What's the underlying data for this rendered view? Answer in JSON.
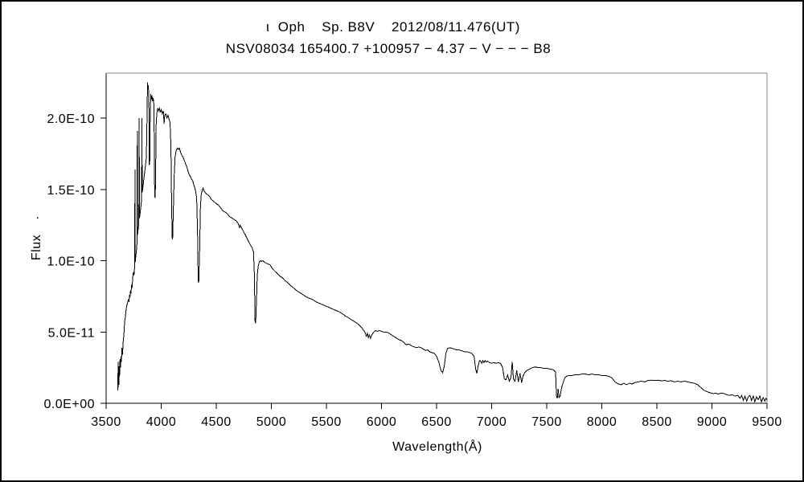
{
  "window": {
    "background": "#ffffff",
    "border_color": "#000000"
  },
  "chart_data": {
    "type": "line",
    "title": "ι  Oph    Sp. B8V    2012/08/11.476(UT)",
    "subtitle": "NSV08034 165400.7 +100957 − 4.37 − V − − − B8",
    "xlabel": "Wavelength(Å)",
    "ylabel": "Flux",
    "ylabel_dot": ".",
    "line_color": "#000000",
    "frame_front_color": "#000000",
    "frame_back_color": "#888888",
    "grid": false,
    "legend": "none",
    "xlim": [
      3500,
      9500
    ],
    "x_tick_values": [
      3500,
      4000,
      4500,
      5000,
      5500,
      6000,
      6500,
      7000,
      7500,
      8000,
      8500,
      9000,
      9500
    ],
    "x_tick_labels": [
      "3500",
      "4000",
      "4500",
      "5000",
      "5500",
      "6000",
      "6500",
      "7000",
      "7500",
      "8000",
      "8500",
      "9000",
      "9500"
    ],
    "y_tick_values_1e11": [
      0,
      5,
      10,
      15,
      20
    ],
    "y_tick_labels": [
      "0.0E+00",
      "5.0E-11",
      "1.0E-10",
      "1.5E-10",
      "2.0E-10"
    ],
    "ylim_1e11": [
      0,
      23.2
    ],
    "flux_unit_scale": "1e-11",
    "points": [
      [
        3607,
        0.9
      ],
      [
        3608,
        2.9
      ],
      [
        3610,
        1.1
      ],
      [
        3612,
        2.4
      ],
      [
        3615,
        1.3
      ],
      [
        3618,
        2.6
      ],
      [
        3622,
        1.9
      ],
      [
        3626,
        3.1
      ],
      [
        3630,
        2.5
      ],
      [
        3634,
        3.3
      ],
      [
        3639,
        2.9
      ],
      [
        3644,
        3.9
      ],
      [
        3649,
        3.4
      ],
      [
        3655,
        4.3
      ],
      [
        3661,
        4.8
      ],
      [
        3668,
        5.7
      ],
      [
        3675,
        6.1
      ],
      [
        3682,
        6.6
      ],
      [
        3689,
        6.9
      ],
      [
        3696,
        7.1
      ],
      [
        3703,
        7.3
      ],
      [
        3708,
        7.1
      ],
      [
        3712,
        7.6
      ],
      [
        3716,
        7.4
      ],
      [
        3721,
        7.9
      ],
      [
        3726,
        7.7
      ],
      [
        3731,
        8.3
      ],
      [
        3736,
        8.1
      ],
      [
        3742,
        8.9
      ],
      [
        3748,
        9.2
      ],
      [
        3753,
        9.0
      ],
      [
        3759,
        9.6
      ],
      [
        3762,
        16.4
      ],
      [
        3764,
        9.9
      ],
      [
        3769,
        10.3
      ],
      [
        3774,
        10.6
      ],
      [
        3778,
        10.9
      ],
      [
        3781,
        11.5
      ],
      [
        3783,
        19.1
      ],
      [
        3785,
        11.8
      ],
      [
        3790,
        12.1
      ],
      [
        3794,
        12.4
      ],
      [
        3797,
        12.8
      ],
      [
        3800,
        20.0
      ],
      [
        3803,
        13.0
      ],
      [
        3808,
        13.3
      ],
      [
        3813,
        13.6
      ],
      [
        3818,
        14.0
      ],
      [
        3822,
        14.3
      ],
      [
        3825,
        20.0
      ],
      [
        3828,
        14.8
      ],
      [
        3833,
        15.1
      ],
      [
        3838,
        15.4
      ],
      [
        3843,
        15.8
      ],
      [
        3848,
        16.1
      ],
      [
        3853,
        16.4
      ],
      [
        3858,
        16.7
      ],
      [
        3863,
        17.0
      ],
      [
        3868,
        18.3
      ],
      [
        3872,
        20.5
      ],
      [
        3876,
        22.5
      ],
      [
        3880,
        22.0
      ],
      [
        3884,
        22.3
      ],
      [
        3888,
        21.2
      ],
      [
        3892,
        16.7
      ],
      [
        3896,
        17.0
      ],
      [
        3900,
        20.0
      ],
      [
        3905,
        21.7
      ],
      [
        3910,
        21.3
      ],
      [
        3916,
        21.6
      ],
      [
        3922,
        21.2
      ],
      [
        3928,
        21.4
      ],
      [
        3934,
        20.9
      ],
      [
        3940,
        15.0
      ],
      [
        3944,
        14.4
      ],
      [
        3948,
        15.2
      ],
      [
        3954,
        19.5
      ],
      [
        3960,
        20.3
      ],
      [
        3968,
        20.7
      ],
      [
        3976,
        20.5
      ],
      [
        3984,
        20.7
      ],
      [
        3992,
        20.4
      ],
      [
        4000,
        20.6
      ],
      [
        4010,
        20.3
      ],
      [
        4020,
        20.5
      ],
      [
        4026,
        19.6
      ],
      [
        4032,
        20.2
      ],
      [
        4042,
        20.3
      ],
      [
        4052,
        20.0
      ],
      [
        4062,
        20.2
      ],
      [
        4072,
        19.9
      ],
      [
        4080,
        19.7
      ],
      [
        4088,
        18.0
      ],
      [
        4094,
        14.0
      ],
      [
        4100,
        11.6
      ],
      [
        4104,
        11.5
      ],
      [
        4110,
        13.5
      ],
      [
        4118,
        16.0
      ],
      [
        4126,
        17.3
      ],
      [
        4136,
        17.7
      ],
      [
        4146,
        17.9
      ],
      [
        4156,
        17.8
      ],
      [
        4166,
        17.9
      ],
      [
        4176,
        17.6
      ],
      [
        4186,
        17.4
      ],
      [
        4196,
        17.3
      ],
      [
        4206,
        17.1
      ],
      [
        4216,
        16.9
      ],
      [
        4226,
        16.7
      ],
      [
        4236,
        16.5
      ],
      [
        4246,
        16.2
      ],
      [
        4256,
        16.0
      ],
      [
        4266,
        15.9
      ],
      [
        4276,
        15.7
      ],
      [
        4286,
        15.6
      ],
      [
        4296,
        15.3
      ],
      [
        4306,
        15.1
      ],
      [
        4314,
        14.8
      ],
      [
        4322,
        14.4
      ],
      [
        4330,
        12.0
      ],
      [
        4336,
        8.6
      ],
      [
        4341,
        8.45
      ],
      [
        4348,
        10.5
      ],
      [
        4356,
        13.8
      ],
      [
        4364,
        14.7
      ],
      [
        4372,
        14.9
      ],
      [
        4380,
        15.1
      ],
      [
        4388,
        14.9
      ],
      [
        4398,
        14.8
      ],
      [
        4410,
        14.7
      ],
      [
        4425,
        14.6
      ],
      [
        4440,
        14.5
      ],
      [
        4455,
        14.3
      ],
      [
        4470,
        14.2
      ],
      [
        4485,
        14.1
      ],
      [
        4500,
        14.0
      ],
      [
        4520,
        13.9
      ],
      [
        4540,
        13.7
      ],
      [
        4560,
        13.5
      ],
      [
        4580,
        13.4
      ],
      [
        4600,
        13.3
      ],
      [
        4620,
        13.1
      ],
      [
        4640,
        13.0
      ],
      [
        4660,
        12.9
      ],
      [
        4680,
        12.8
      ],
      [
        4700,
        12.6
      ],
      [
        4710,
        12.3
      ],
      [
        4716,
        12.5
      ],
      [
        4730,
        12.3
      ],
      [
        4750,
        12.0
      ],
      [
        4770,
        11.7
      ],
      [
        4790,
        11.4
      ],
      [
        4810,
        11.1
      ],
      [
        4826,
        10.9
      ],
      [
        4838,
        10.6
      ],
      [
        4846,
        9.0
      ],
      [
        4852,
        5.8
      ],
      [
        4858,
        5.6
      ],
      [
        4864,
        7.0
      ],
      [
        4872,
        9.0
      ],
      [
        4880,
        9.6
      ],
      [
        4890,
        9.9
      ],
      [
        4900,
        10.0
      ],
      [
        4912,
        9.95
      ],
      [
        4924,
        10.0
      ],
      [
        4936,
        9.9
      ],
      [
        4948,
        9.85
      ],
      [
        4960,
        9.8
      ],
      [
        4975,
        9.75
      ],
      [
        4990,
        9.7
      ],
      [
        5005,
        9.5
      ],
      [
        5020,
        9.35
      ],
      [
        5040,
        9.2
      ],
      [
        5060,
        9.05
      ],
      [
        5080,
        8.9
      ],
      [
        5100,
        8.8
      ],
      [
        5125,
        8.6
      ],
      [
        5150,
        8.45
      ],
      [
        5175,
        8.25
      ],
      [
        5200,
        8.1
      ],
      [
        5230,
        7.9
      ],
      [
        5260,
        7.75
      ],
      [
        5290,
        7.6
      ],
      [
        5320,
        7.45
      ],
      [
        5350,
        7.35
      ],
      [
        5380,
        7.25
      ],
      [
        5410,
        7.1
      ],
      [
        5440,
        7.0
      ],
      [
        5470,
        6.9
      ],
      [
        5500,
        6.8
      ],
      [
        5530,
        6.7
      ],
      [
        5560,
        6.6
      ],
      [
        5590,
        6.5
      ],
      [
        5620,
        6.4
      ],
      [
        5650,
        6.25
      ],
      [
        5675,
        6.1
      ],
      [
        5700,
        6.0
      ],
      [
        5730,
        5.85
      ],
      [
        5760,
        5.7
      ],
      [
        5790,
        5.55
      ],
      [
        5820,
        5.3
      ],
      [
        5850,
        5.0
      ],
      [
        5862,
        4.7
      ],
      [
        5872,
        4.9
      ],
      [
        5880,
        4.6
      ],
      [
        5890,
        4.8
      ],
      [
        5900,
        4.55
      ],
      [
        5912,
        4.8
      ],
      [
        5930,
        5.0
      ],
      [
        5945,
        5.1
      ],
      [
        5960,
        5.05
      ],
      [
        5980,
        5.1
      ],
      [
        6000,
        5.05
      ],
      [
        6020,
        5.0
      ],
      [
        6040,
        5.0
      ],
      [
        6060,
        4.95
      ],
      [
        6080,
        4.85
      ],
      [
        6100,
        4.75
      ],
      [
        6120,
        4.65
      ],
      [
        6140,
        4.55
      ],
      [
        6160,
        4.45
      ],
      [
        6180,
        4.4
      ],
      [
        6200,
        4.3
      ],
      [
        6225,
        4.1
      ],
      [
        6240,
        4.15
      ],
      [
        6260,
        4.1
      ],
      [
        6280,
        4.0
      ],
      [
        6300,
        3.95
      ],
      [
        6320,
        3.9
      ],
      [
        6340,
        3.95
      ],
      [
        6360,
        3.9
      ],
      [
        6380,
        3.8
      ],
      [
        6400,
        3.7
      ],
      [
        6420,
        3.75
      ],
      [
        6440,
        3.6
      ],
      [
        6460,
        3.55
      ],
      [
        6480,
        3.5
      ],
      [
        6500,
        3.3
      ],
      [
        6520,
        2.9
      ],
      [
        6540,
        2.3
      ],
      [
        6555,
        2.15
      ],
      [
        6570,
        2.6
      ],
      [
        6585,
        3.5
      ],
      [
        6600,
        3.85
      ],
      [
        6620,
        3.9
      ],
      [
        6640,
        3.85
      ],
      [
        6660,
        3.8
      ],
      [
        6680,
        3.75
      ],
      [
        6700,
        3.75
      ],
      [
        6720,
        3.7
      ],
      [
        6740,
        3.65
      ],
      [
        6760,
        3.6
      ],
      [
        6780,
        3.6
      ],
      [
        6800,
        3.55
      ],
      [
        6820,
        3.5
      ],
      [
        6840,
        3.3
      ],
      [
        6855,
        2.4
      ],
      [
        6866,
        2.1
      ],
      [
        6877,
        2.6
      ],
      [
        6890,
        3.0
      ],
      [
        6900,
        2.95
      ],
      [
        6910,
        2.8
      ],
      [
        6920,
        3.0
      ],
      [
        6930,
        2.85
      ],
      [
        6940,
        3.0
      ],
      [
        6950,
        2.9
      ],
      [
        6965,
        2.95
      ],
      [
        6980,
        2.85
      ],
      [
        7000,
        2.8
      ],
      [
        7020,
        2.85
      ],
      [
        7040,
        2.8
      ],
      [
        7060,
        2.85
      ],
      [
        7080,
        2.8
      ],
      [
        7100,
        2.5
      ],
      [
        7115,
        1.7
      ],
      [
        7130,
        1.65
      ],
      [
        7145,
        2.0
      ],
      [
        7160,
        1.55
      ],
      [
        7175,
        1.8
      ],
      [
        7187,
        2.9
      ],
      [
        7198,
        1.7
      ],
      [
        7212,
        1.55
      ],
      [
        7228,
        2.3
      ],
      [
        7242,
        1.5
      ],
      [
        7258,
        2.1
      ],
      [
        7272,
        1.45
      ],
      [
        7285,
        1.9
      ],
      [
        7300,
        2.15
      ],
      [
        7320,
        2.3
      ],
      [
        7345,
        2.4
      ],
      [
        7370,
        2.5
      ],
      [
        7395,
        2.55
      ],
      [
        7420,
        2.5
      ],
      [
        7445,
        2.5
      ],
      [
        7470,
        2.45
      ],
      [
        7500,
        2.45
      ],
      [
        7530,
        2.4
      ],
      [
        7560,
        2.35
      ],
      [
        7580,
        2.2
      ],
      [
        7588,
        0.5
      ],
      [
        7596,
        0.35
      ],
      [
        7604,
        1.0
      ],
      [
        7612,
        0.4
      ],
      [
        7622,
        0.5
      ],
      [
        7635,
        1.1
      ],
      [
        7650,
        1.45
      ],
      [
        7665,
        1.8
      ],
      [
        7680,
        1.9
      ],
      [
        7700,
        1.95
      ],
      [
        7730,
        1.95
      ],
      [
        7760,
        2.0
      ],
      [
        7790,
        2.0
      ],
      [
        7820,
        2.05
      ],
      [
        7850,
        2.05
      ],
      [
        7880,
        2.0
      ],
      [
        7910,
        2.05
      ],
      [
        7940,
        2.0
      ],
      [
        7970,
        2.0
      ],
      [
        8000,
        1.95
      ],
      [
        8030,
        1.95
      ],
      [
        8060,
        1.9
      ],
      [
        8090,
        1.8
      ],
      [
        8120,
        1.5
      ],
      [
        8150,
        1.35
      ],
      [
        8175,
        1.3
      ],
      [
        8200,
        1.4
      ],
      [
        8225,
        1.3
      ],
      [
        8250,
        1.4
      ],
      [
        8275,
        1.35
      ],
      [
        8300,
        1.45
      ],
      [
        8330,
        1.5
      ],
      [
        8360,
        1.55
      ],
      [
        8390,
        1.5
      ],
      [
        8420,
        1.6
      ],
      [
        8450,
        1.62
      ],
      [
        8480,
        1.6
      ],
      [
        8510,
        1.62
      ],
      [
        8540,
        1.58
      ],
      [
        8570,
        1.6
      ],
      [
        8600,
        1.55
      ],
      [
        8630,
        1.58
      ],
      [
        8660,
        1.5
      ],
      [
        8690,
        1.55
      ],
      [
        8720,
        1.5
      ],
      [
        8750,
        1.55
      ],
      [
        8780,
        1.5
      ],
      [
        8810,
        1.45
      ],
      [
        8840,
        1.4
      ],
      [
        8870,
        1.3
      ],
      [
        8900,
        1.1
      ],
      [
        8930,
        0.9
      ],
      [
        8960,
        0.8
      ],
      [
        8990,
        0.72
      ],
      [
        9010,
        0.68
      ],
      [
        9035,
        0.7
      ],
      [
        9060,
        0.65
      ],
      [
        9085,
        0.72
      ],
      [
        9110,
        0.68
      ],
      [
        9135,
        0.6
      ],
      [
        9160,
        0.55
      ],
      [
        9185,
        0.6
      ],
      [
        9210,
        0.5
      ],
      [
        9235,
        0.55
      ],
      [
        9255,
        0.35
      ],
      [
        9270,
        0.55
      ],
      [
        9285,
        0.2
      ],
      [
        9300,
        0.5
      ],
      [
        9315,
        0.15
      ],
      [
        9330,
        0.45
      ],
      [
        9345,
        0.55
      ],
      [
        9360,
        0.2
      ],
      [
        9375,
        0.5
      ],
      [
        9390,
        0.1
      ],
      [
        9405,
        0.45
      ],
      [
        9420,
        0.25
      ],
      [
        9435,
        0.5
      ],
      [
        9450,
        0.1
      ],
      [
        9465,
        0.4
      ],
      [
        9480,
        0.15
      ],
      [
        9490,
        0.35
      ],
      [
        9500,
        0.25
      ]
    ]
  }
}
